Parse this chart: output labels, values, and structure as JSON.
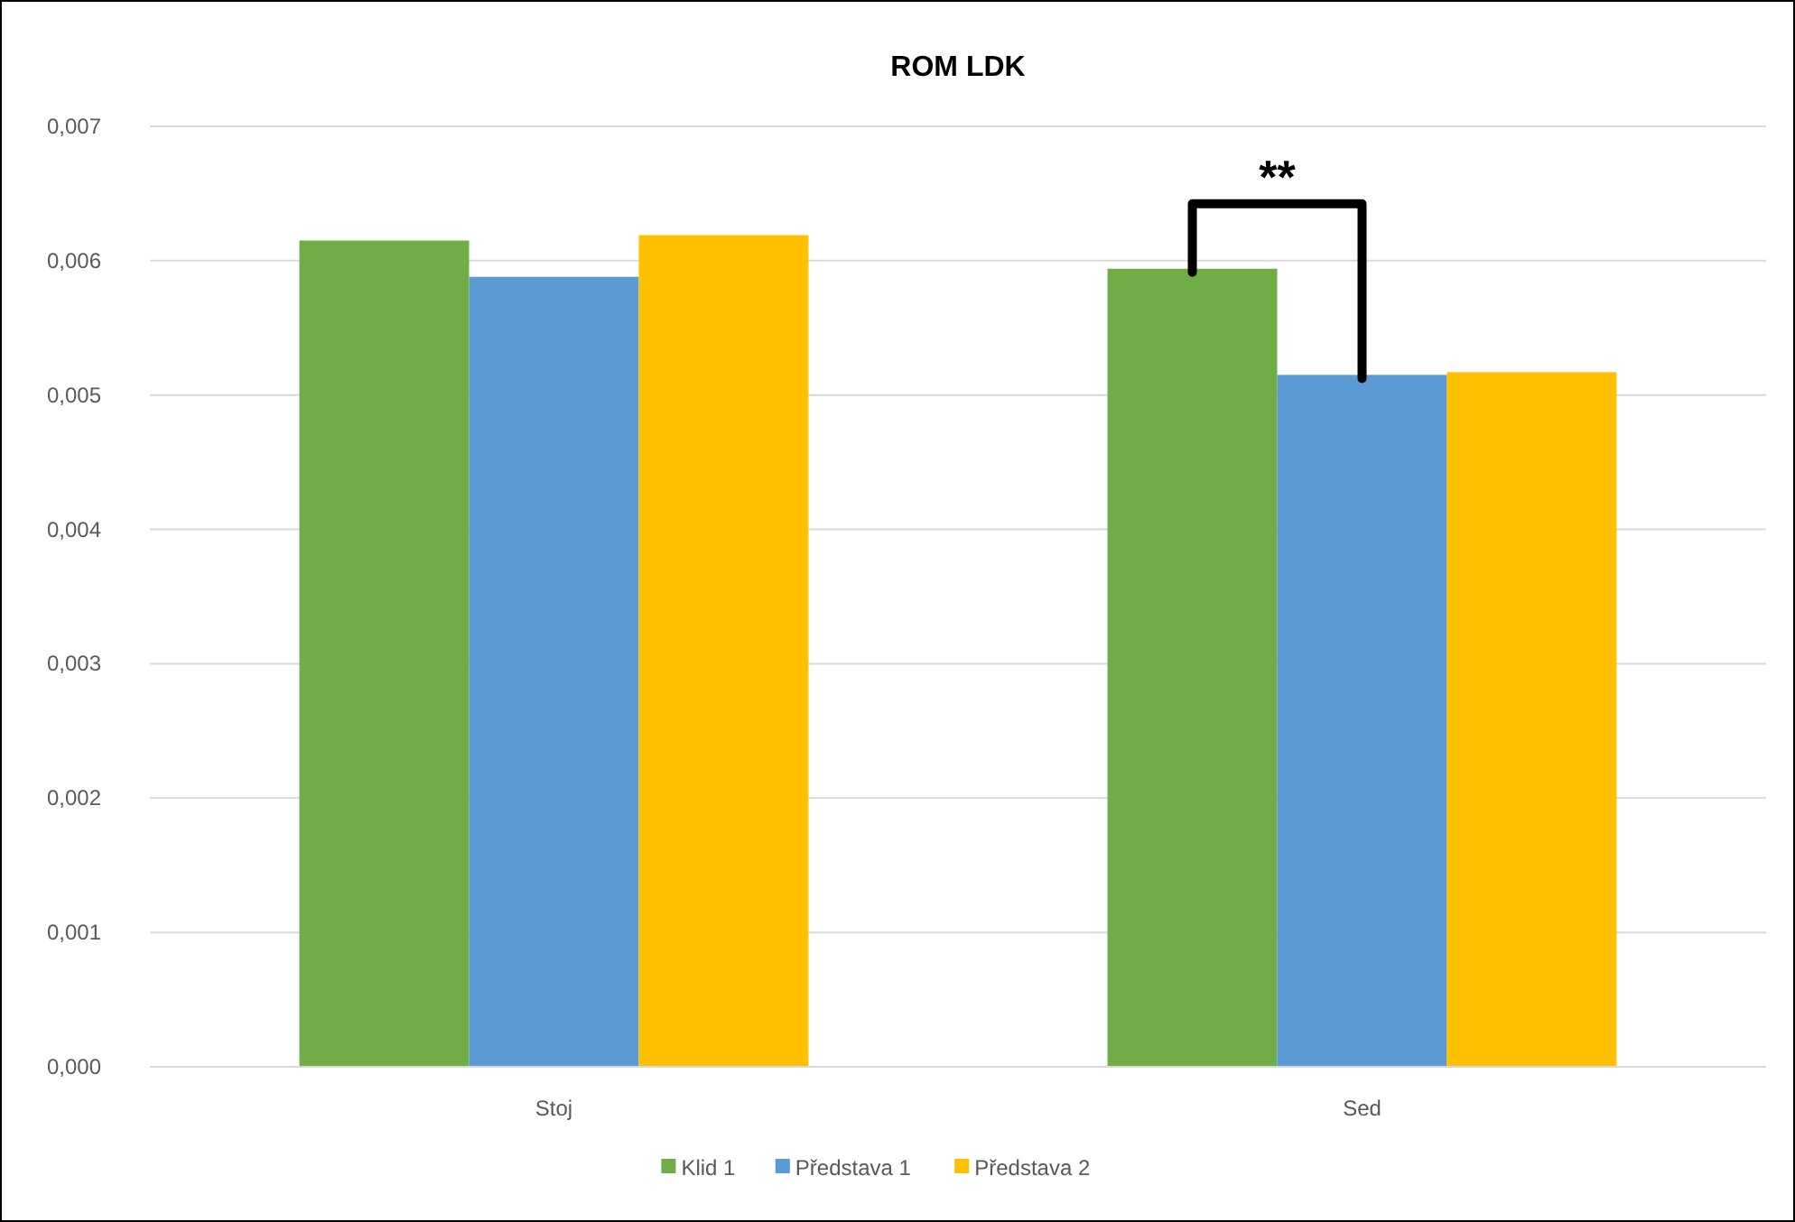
{
  "chart_data": {
    "type": "bar",
    "title": "ROM LDK",
    "categories": [
      "Stoj",
      "Sed"
    ],
    "series": [
      {
        "name": "Klid 1",
        "color": "#70ad47",
        "values": [
          0.00615,
          0.00594
        ]
      },
      {
        "name": "Představa 1",
        "color": "#5b9bd5",
        "values": [
          0.00588,
          0.00515
        ]
      },
      {
        "name": "Představa 2",
        "color": "#ffc000",
        "values": [
          0.00619,
          0.00517
        ]
      }
    ],
    "ylim": [
      0,
      0.007
    ],
    "yticks": [
      {
        "value": 0,
        "label": "0,000"
      },
      {
        "value": 0.001,
        "label": "0,001"
      },
      {
        "value": 0.002,
        "label": "0,002"
      },
      {
        "value": 0.003,
        "label": "0,003"
      },
      {
        "value": 0.004,
        "label": "0,004"
      },
      {
        "value": 0.005,
        "label": "0,005"
      },
      {
        "value": 0.006,
        "label": "0,006"
      },
      {
        "value": 0.007,
        "label": "0,007"
      }
    ],
    "grid": "y",
    "legend": "bottom",
    "annotations": [
      "**"
    ]
  }
}
